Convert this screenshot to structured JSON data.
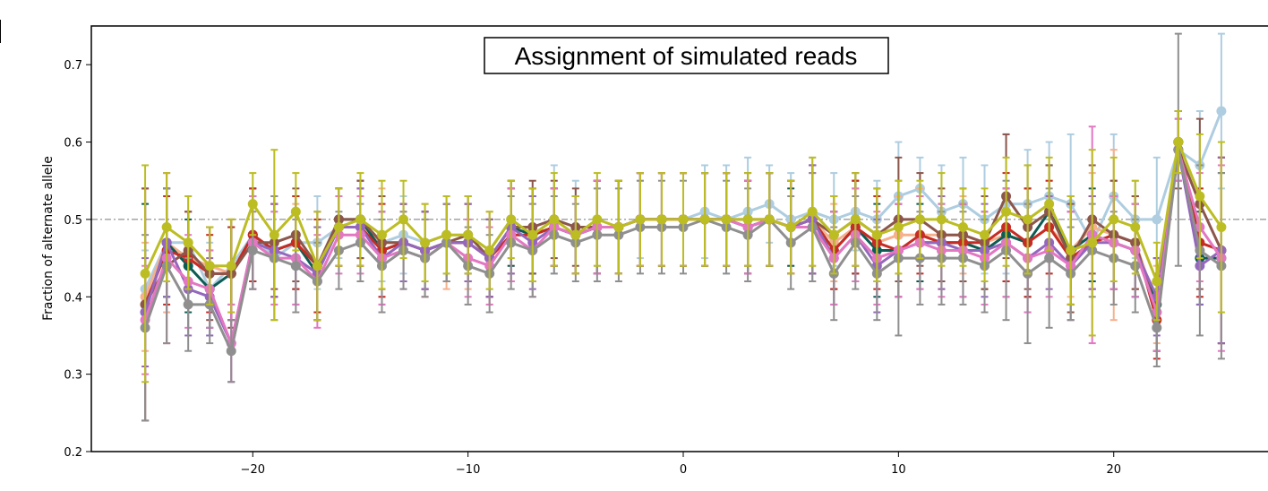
{
  "chart_data": {
    "type": "line",
    "title": "Assignment of simulated reads",
    "xlabel": "",
    "ylabel": "Fraction of alternate allele",
    "xlim": [
      -27.5,
      27.5
    ],
    "ylim": [
      0.2,
      0.75
    ],
    "xticks": [
      -20,
      -10,
      0,
      10,
      20
    ],
    "xtick_labels": [
      "−20",
      "−10",
      "0",
      "10",
      "20"
    ],
    "yticks": [
      0.2,
      0.3,
      0.4,
      0.5,
      0.6,
      0.7
    ],
    "ytick_labels": [
      "0.2",
      "0.3",
      "0.4",
      "0.5",
      "0.6",
      "0.7"
    ],
    "reference_line": 0.5,
    "grid": false,
    "legend": "none",
    "x": [
      -25,
      -24,
      -23,
      -22,
      -21,
      -20,
      -19,
      -18,
      -17,
      -16,
      -15,
      -14,
      -13,
      -12,
      -11,
      -10,
      -9,
      -8,
      -7,
      -6,
      -5,
      -4,
      -3,
      -2,
      -1,
      0,
      1,
      2,
      3,
      4,
      5,
      6,
      7,
      8,
      9,
      10,
      11,
      12,
      13,
      14,
      15,
      16,
      17,
      18,
      19,
      20,
      21,
      22,
      23,
      24,
      25
    ],
    "series": [
      {
        "color": "#aecde0",
        "values": [
          0.41,
          0.47,
          0.47,
          0.41,
          0.44,
          0.48,
          0.45,
          0.47,
          0.47,
          0.49,
          0.5,
          0.47,
          0.48,
          0.47,
          0.48,
          0.48,
          0.46,
          0.5,
          0.48,
          0.5,
          0.49,
          0.49,
          0.49,
          0.5,
          0.5,
          0.5,
          0.51,
          0.5,
          0.51,
          0.52,
          0.5,
          0.51,
          0.5,
          0.51,
          0.5,
          0.53,
          0.54,
          0.51,
          0.52,
          0.5,
          0.52,
          0.52,
          0.53,
          0.52,
          0.47,
          0.53,
          0.5,
          0.5,
          0.59,
          0.57,
          0.64
        ],
        "err": [
          0.05,
          0.07,
          0.06,
          0.06,
          0.06,
          0.06,
          0.06,
          0.06,
          0.06,
          0.04,
          0.05,
          0.05,
          0.05,
          0.05,
          0.05,
          0.05,
          0.05,
          0.05,
          0.05,
          0.07,
          0.06,
          0.05,
          0.06,
          0.05,
          0.06,
          0.06,
          0.06,
          0.07,
          0.07,
          0.05,
          0.06,
          0.07,
          0.06,
          0.05,
          0.05,
          0.07,
          0.04,
          0.06,
          0.06,
          0.07,
          0.09,
          0.07,
          0.07,
          0.09,
          0.06,
          0.08,
          0.05,
          0.08,
          0.04,
          0.07,
          0.1
        ]
      },
      {
        "color": "#f6b08c",
        "values": [
          0.4,
          0.47,
          0.45,
          0.44,
          0.43,
          0.48,
          0.46,
          0.47,
          0.44,
          0.49,
          0.49,
          0.47,
          0.47,
          0.46,
          0.47,
          0.47,
          0.45,
          0.49,
          0.48,
          0.49,
          0.48,
          0.49,
          0.49,
          0.5,
          0.5,
          0.5,
          0.5,
          0.5,
          0.49,
          0.5,
          0.49,
          0.5,
          0.47,
          0.49,
          0.47,
          0.48,
          0.48,
          0.48,
          0.48,
          0.47,
          0.48,
          0.47,
          0.49,
          0.46,
          0.49,
          0.48,
          0.47,
          0.39,
          0.6,
          0.47,
          0.46
        ],
        "err": [
          0.07,
          0.09,
          0.06,
          0.05,
          0.07,
          0.06,
          0.06,
          0.05,
          0.06,
          0.05,
          0.05,
          0.07,
          0.05,
          0.06,
          0.06,
          0.06,
          0.06,
          0.05,
          0.06,
          0.05,
          0.05,
          0.06,
          0.06,
          0.06,
          0.06,
          0.06,
          0.06,
          0.06,
          0.06,
          0.06,
          0.06,
          0.06,
          0.05,
          0.06,
          0.06,
          0.05,
          0.06,
          0.06,
          0.05,
          0.06,
          0.06,
          0.07,
          0.06,
          0.06,
          0.07,
          0.11,
          0.06,
          0.05,
          0.04,
          0.07,
          0.12
        ]
      },
      {
        "color": "#0d5c54",
        "values": [
          0.38,
          0.47,
          0.44,
          0.41,
          0.43,
          0.48,
          0.46,
          0.47,
          0.43,
          0.5,
          0.5,
          0.46,
          0.47,
          0.46,
          0.47,
          0.47,
          0.45,
          0.49,
          0.48,
          0.49,
          0.48,
          0.49,
          0.49,
          0.5,
          0.5,
          0.5,
          0.5,
          0.5,
          0.49,
          0.5,
          0.49,
          0.5,
          0.46,
          0.49,
          0.46,
          0.46,
          0.47,
          0.47,
          0.47,
          0.46,
          0.48,
          0.47,
          0.51,
          0.46,
          0.48,
          0.47,
          0.46,
          0.39,
          0.6,
          0.45,
          0.45
        ],
        "err": [
          0.14,
          0.07,
          0.06,
          0.05,
          0.06,
          0.06,
          0.06,
          0.06,
          0.06,
          0.04,
          0.05,
          0.05,
          0.05,
          0.05,
          0.05,
          0.05,
          0.05,
          0.05,
          0.05,
          0.05,
          0.05,
          0.06,
          0.06,
          0.06,
          0.06,
          0.06,
          0.06,
          0.06,
          0.06,
          0.06,
          0.05,
          0.07,
          0.05,
          0.06,
          0.06,
          0.06,
          0.05,
          0.05,
          0.05,
          0.05,
          0.06,
          0.07,
          0.06,
          0.07,
          0.06,
          0.06,
          0.06,
          0.06,
          0.04,
          0.06,
          0.11
        ]
      },
      {
        "color": "#c62b24",
        "values": [
          0.39,
          0.46,
          0.45,
          0.43,
          0.43,
          0.48,
          0.46,
          0.47,
          0.44,
          0.49,
          0.49,
          0.46,
          0.47,
          0.46,
          0.47,
          0.47,
          0.45,
          0.48,
          0.48,
          0.49,
          0.48,
          0.49,
          0.49,
          0.5,
          0.5,
          0.5,
          0.5,
          0.5,
          0.49,
          0.5,
          0.49,
          0.5,
          0.46,
          0.49,
          0.47,
          0.46,
          0.48,
          0.47,
          0.47,
          0.47,
          0.49,
          0.47,
          0.49,
          0.45,
          0.47,
          0.48,
          0.47,
          0.37,
          0.6,
          0.47,
          0.46
        ],
        "err": [
          0.15,
          0.07,
          0.06,
          0.05,
          0.06,
          0.06,
          0.06,
          0.06,
          0.06,
          0.05,
          0.05,
          0.06,
          0.05,
          0.05,
          0.05,
          0.05,
          0.05,
          0.06,
          0.06,
          0.05,
          0.05,
          0.06,
          0.06,
          0.06,
          0.06,
          0.06,
          0.06,
          0.06,
          0.06,
          0.06,
          0.06,
          0.07,
          0.05,
          0.06,
          0.06,
          0.06,
          0.05,
          0.06,
          0.05,
          0.06,
          0.07,
          0.07,
          0.06,
          0.06,
          0.06,
          0.07,
          0.06,
          0.05,
          0.04,
          0.07,
          0.12
        ]
      },
      {
        "color": "#8c564b",
        "values": [
          0.39,
          0.44,
          0.46,
          0.43,
          0.43,
          0.47,
          0.47,
          0.48,
          0.44,
          0.5,
          0.5,
          0.47,
          0.47,
          0.46,
          0.47,
          0.48,
          0.45,
          0.49,
          0.49,
          0.5,
          0.49,
          0.49,
          0.49,
          0.5,
          0.5,
          0.5,
          0.5,
          0.5,
          0.5,
          0.5,
          0.49,
          0.5,
          0.48,
          0.5,
          0.48,
          0.5,
          0.5,
          0.48,
          0.48,
          0.47,
          0.53,
          0.49,
          0.51,
          0.45,
          0.5,
          0.48,
          0.47,
          0.38,
          0.59,
          0.52,
          0.46
        ],
        "err": [
          0.15,
          0.1,
          0.05,
          0.06,
          0.07,
          0.06,
          0.06,
          0.06,
          0.07,
          0.04,
          0.05,
          0.06,
          0.05,
          0.05,
          0.05,
          0.05,
          0.05,
          0.06,
          0.06,
          0.05,
          0.05,
          0.06,
          0.06,
          0.06,
          0.06,
          0.06,
          0.06,
          0.06,
          0.06,
          0.06,
          0.06,
          0.07,
          0.05,
          0.06,
          0.06,
          0.08,
          0.06,
          0.06,
          0.06,
          0.06,
          0.08,
          0.08,
          0.06,
          0.07,
          0.07,
          0.07,
          0.06,
          0.05,
          0.05,
          0.11,
          0.12
        ]
      },
      {
        "color": "#9467bd",
        "values": [
          0.38,
          0.47,
          0.41,
          0.4,
          0.34,
          0.47,
          0.46,
          0.45,
          0.43,
          0.49,
          0.49,
          0.45,
          0.47,
          0.46,
          0.47,
          0.47,
          0.45,
          0.49,
          0.47,
          0.49,
          0.48,
          0.49,
          0.49,
          0.5,
          0.5,
          0.5,
          0.5,
          0.5,
          0.49,
          0.5,
          0.49,
          0.5,
          0.45,
          0.48,
          0.44,
          0.46,
          0.47,
          0.47,
          0.46,
          0.46,
          0.47,
          0.45,
          0.47,
          0.44,
          0.47,
          0.47,
          0.46,
          0.4,
          0.59,
          0.44,
          0.46
        ],
        "err": [
          0.07,
          0.07,
          0.06,
          0.05,
          0.05,
          0.06,
          0.06,
          0.06,
          0.06,
          0.05,
          0.05,
          0.06,
          0.05,
          0.05,
          0.05,
          0.05,
          0.05,
          0.06,
          0.06,
          0.05,
          0.05,
          0.06,
          0.06,
          0.06,
          0.06,
          0.06,
          0.06,
          0.06,
          0.06,
          0.06,
          0.06,
          0.07,
          0.06,
          0.06,
          0.06,
          0.06,
          0.06,
          0.06,
          0.06,
          0.06,
          0.07,
          0.07,
          0.06,
          0.07,
          0.06,
          0.06,
          0.06,
          0.05,
          0.04,
          0.05,
          0.12
        ]
      },
      {
        "color": "#e377c2",
        "values": [
          0.37,
          0.45,
          0.42,
          0.41,
          0.34,
          0.47,
          0.45,
          0.45,
          0.42,
          0.48,
          0.48,
          0.45,
          0.46,
          0.45,
          0.47,
          0.45,
          0.44,
          0.48,
          0.46,
          0.49,
          0.48,
          0.49,
          0.49,
          0.5,
          0.5,
          0.5,
          0.5,
          0.5,
          0.49,
          0.5,
          0.49,
          0.49,
          0.45,
          0.48,
          0.45,
          0.46,
          0.47,
          0.46,
          0.46,
          0.45,
          0.47,
          0.45,
          0.46,
          0.44,
          0.48,
          0.47,
          0.46,
          0.38,
          0.59,
          0.49,
          0.45
        ],
        "err": [
          0.07,
          0.11,
          0.06,
          0.05,
          0.05,
          0.06,
          0.06,
          0.06,
          0.06,
          0.05,
          0.05,
          0.06,
          0.05,
          0.05,
          0.05,
          0.05,
          0.05,
          0.06,
          0.06,
          0.05,
          0.05,
          0.06,
          0.06,
          0.06,
          0.06,
          0.06,
          0.06,
          0.06,
          0.06,
          0.06,
          0.06,
          0.07,
          0.06,
          0.06,
          0.06,
          0.06,
          0.06,
          0.06,
          0.06,
          0.06,
          0.07,
          0.07,
          0.06,
          0.07,
          0.14,
          0.06,
          0.06,
          0.05,
          0.04,
          0.07,
          0.12
        ]
      },
      {
        "color": "#8f8f8f",
        "values": [
          0.36,
          0.44,
          0.39,
          0.39,
          0.33,
          0.46,
          0.45,
          0.44,
          0.42,
          0.46,
          0.47,
          0.44,
          0.46,
          0.45,
          0.47,
          0.44,
          0.43,
          0.47,
          0.46,
          0.48,
          0.47,
          0.48,
          0.48,
          0.49,
          0.49,
          0.49,
          0.5,
          0.49,
          0.48,
          0.5,
          0.47,
          0.49,
          0.43,
          0.47,
          0.43,
          0.45,
          0.45,
          0.45,
          0.45,
          0.44,
          0.46,
          0.43,
          0.45,
          0.43,
          0.46,
          0.45,
          0.44,
          0.36,
          0.59,
          0.46,
          0.44
        ],
        "err": [
          0.12,
          0.1,
          0.06,
          0.05,
          0.04,
          0.05,
          0.08,
          0.06,
          0.05,
          0.05,
          0.05,
          0.06,
          0.05,
          0.05,
          0.05,
          0.05,
          0.05,
          0.06,
          0.06,
          0.05,
          0.05,
          0.06,
          0.06,
          0.06,
          0.06,
          0.06,
          0.06,
          0.06,
          0.06,
          0.06,
          0.06,
          0.07,
          0.06,
          0.06,
          0.06,
          0.1,
          0.06,
          0.06,
          0.06,
          0.06,
          0.09,
          0.09,
          0.09,
          0.06,
          0.06,
          0.06,
          0.06,
          0.05,
          0.15,
          0.11,
          0.12
        ]
      },
      {
        "color": "#bcbd22",
        "values": [
          0.43,
          0.49,
          0.47,
          0.44,
          0.44,
          0.52,
          0.48,
          0.51,
          0.44,
          0.49,
          0.5,
          0.48,
          0.5,
          0.47,
          0.48,
          0.48,
          0.46,
          0.5,
          0.48,
          0.5,
          0.48,
          0.5,
          0.49,
          0.5,
          0.5,
          0.5,
          0.5,
          0.5,
          0.5,
          0.5,
          0.49,
          0.51,
          0.48,
          0.5,
          0.48,
          0.49,
          0.5,
          0.5,
          0.49,
          0.48,
          0.51,
          0.5,
          0.52,
          0.46,
          0.47,
          0.5,
          0.49,
          0.42,
          0.6,
          0.53,
          0.49
        ],
        "err": [
          0.14,
          0.07,
          0.06,
          0.05,
          0.06,
          0.04,
          0.11,
          0.05,
          0.07,
          0.05,
          0.06,
          0.07,
          0.05,
          0.05,
          0.05,
          0.05,
          0.05,
          0.05,
          0.06,
          0.06,
          0.05,
          0.06,
          0.06,
          0.06,
          0.06,
          0.06,
          0.06,
          0.06,
          0.06,
          0.06,
          0.06,
          0.07,
          0.05,
          0.06,
          0.06,
          0.06,
          0.05,
          0.06,
          0.05,
          0.06,
          0.07,
          0.07,
          0.06,
          0.07,
          0.12,
          0.08,
          0.06,
          0.05,
          0.04,
          0.08,
          0.11
        ]
      }
    ]
  }
}
